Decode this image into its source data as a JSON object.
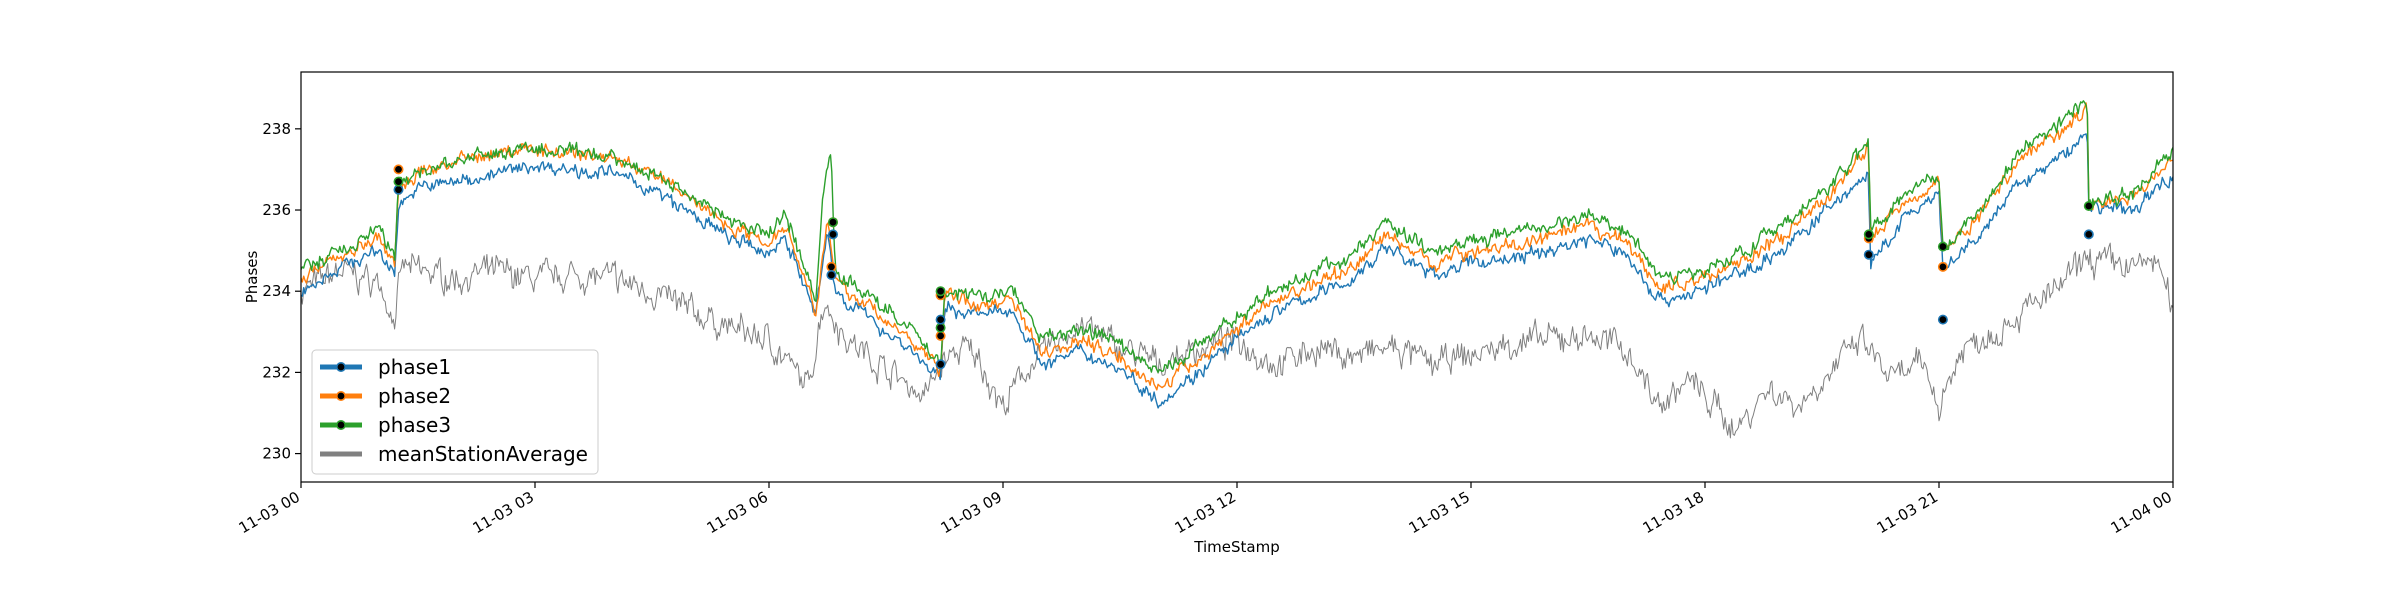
{
  "chart_data": {
    "type": "line",
    "xlabel": "TimeStamp",
    "ylabel": "Phases",
    "x_ticks": [
      "11-03 00",
      "11-03 03",
      "11-03 06",
      "11-03 09",
      "11-03 12",
      "11-03 15",
      "11-03 18",
      "11-03 21",
      "11-04 00"
    ],
    "y_ticks": [
      "230",
      "232",
      "234",
      "236",
      "238"
    ],
    "xlim_hours": [
      0,
      24
    ],
    "ylim": [
      229.3,
      239.4
    ],
    "grid": false,
    "legend_position": "lower-left",
    "series": [
      {
        "name": "phase1",
        "color": "#1f77b4",
        "noise": 0.22,
        "points": [
          [
            0,
            234.0
          ],
          [
            0.5,
            234.6
          ],
          [
            1.0,
            235.0
          ],
          [
            1.2,
            234.4
          ],
          [
            1.25,
            236.2
          ],
          [
            1.6,
            236.6
          ],
          [
            2.0,
            236.7
          ],
          [
            2.5,
            236.9
          ],
          [
            3.0,
            237.1
          ],
          [
            3.5,
            237.0
          ],
          [
            4.0,
            236.9
          ],
          [
            4.5,
            236.5
          ],
          [
            5.0,
            235.9
          ],
          [
            5.5,
            235.3
          ],
          [
            6.0,
            234.9
          ],
          [
            6.2,
            235.4
          ],
          [
            6.6,
            233.4
          ],
          [
            6.75,
            235.5
          ],
          [
            6.85,
            234.0
          ],
          [
            7.3,
            233.3
          ],
          [
            7.8,
            232.6
          ],
          [
            8.2,
            231.8
          ],
          [
            8.25,
            233.6
          ],
          [
            8.5,
            233.5
          ],
          [
            8.8,
            233.4
          ],
          [
            9.1,
            233.6
          ],
          [
            9.5,
            232.2
          ],
          [
            10.0,
            232.5
          ],
          [
            10.5,
            232.1
          ],
          [
            11.0,
            231.3
          ],
          [
            11.5,
            232.0
          ],
          [
            12.0,
            232.8
          ],
          [
            12.5,
            233.5
          ],
          [
            13.0,
            233.9
          ],
          [
            13.5,
            234.3
          ],
          [
            13.9,
            235.1
          ],
          [
            14.5,
            234.4
          ],
          [
            15.0,
            234.7
          ],
          [
            15.5,
            234.8
          ],
          [
            16.0,
            235.0
          ],
          [
            16.5,
            235.3
          ],
          [
            17.0,
            234.9
          ],
          [
            17.4,
            233.8
          ],
          [
            17.8,
            233.9
          ],
          [
            18.5,
            234.5
          ],
          [
            19.0,
            235.0
          ],
          [
            19.5,
            235.9
          ],
          [
            20.1,
            236.9
          ],
          [
            20.12,
            234.6
          ],
          [
            20.6,
            235.9
          ],
          [
            21.0,
            236.3
          ],
          [
            21.05,
            234.5
          ],
          [
            21.5,
            235.3
          ],
          [
            22.0,
            236.6
          ],
          [
            22.5,
            237.2
          ],
          [
            22.9,
            237.9
          ],
          [
            22.92,
            236.1
          ],
          [
            23.5,
            236.0
          ],
          [
            24.0,
            236.9
          ]
        ]
      },
      {
        "name": "phase2",
        "color": "#ff7f0e",
        "noise": 0.22,
        "points": [
          [
            0,
            234.3
          ],
          [
            0.5,
            234.9
          ],
          [
            1.0,
            235.3
          ],
          [
            1.2,
            234.6
          ],
          [
            1.25,
            236.5
          ],
          [
            1.6,
            237.0
          ],
          [
            2.0,
            237.2
          ],
          [
            2.5,
            237.4
          ],
          [
            3.0,
            237.5
          ],
          [
            3.5,
            237.4
          ],
          [
            4.0,
            237.3
          ],
          [
            4.5,
            236.9
          ],
          [
            5.0,
            236.3
          ],
          [
            5.5,
            235.6
          ],
          [
            6.0,
            235.2
          ],
          [
            6.2,
            235.7
          ],
          [
            6.6,
            233.6
          ],
          [
            6.75,
            235.7
          ],
          [
            6.85,
            234.2
          ],
          [
            7.3,
            233.6
          ],
          [
            7.8,
            232.8
          ],
          [
            8.2,
            232.1
          ],
          [
            8.25,
            233.9
          ],
          [
            8.5,
            233.8
          ],
          [
            8.8,
            233.6
          ],
          [
            9.1,
            233.9
          ],
          [
            9.5,
            232.5
          ],
          [
            10.0,
            232.8
          ],
          [
            10.5,
            232.4
          ],
          [
            11.0,
            231.6
          ],
          [
            11.5,
            232.3
          ],
          [
            12.0,
            233.1
          ],
          [
            12.5,
            233.8
          ],
          [
            13.0,
            234.2
          ],
          [
            13.5,
            234.6
          ],
          [
            13.9,
            235.4
          ],
          [
            14.5,
            234.7
          ],
          [
            15.0,
            235.0
          ],
          [
            15.5,
            235.1
          ],
          [
            16.0,
            235.3
          ],
          [
            16.5,
            235.6
          ],
          [
            17.0,
            235.2
          ],
          [
            17.4,
            234.1
          ],
          [
            17.8,
            234.2
          ],
          [
            18.5,
            234.8
          ],
          [
            19.0,
            235.3
          ],
          [
            19.5,
            236.2
          ],
          [
            20.1,
            237.5
          ],
          [
            20.12,
            235.3
          ],
          [
            20.6,
            236.3
          ],
          [
            21.0,
            236.7
          ],
          [
            21.05,
            235.0
          ],
          [
            21.5,
            235.8
          ],
          [
            22.0,
            237.2
          ],
          [
            22.5,
            237.9
          ],
          [
            22.9,
            238.5
          ],
          [
            22.92,
            236.2
          ],
          [
            23.5,
            236.3
          ],
          [
            24.0,
            237.3
          ]
        ]
      },
      {
        "name": "phase3",
        "color": "#2ca02c",
        "noise": 0.22,
        "points": [
          [
            0,
            234.5
          ],
          [
            0.5,
            235.0
          ],
          [
            1.0,
            235.5
          ],
          [
            1.2,
            234.8
          ],
          [
            1.25,
            236.7
          ],
          [
            1.6,
            237.0
          ],
          [
            2.0,
            237.2
          ],
          [
            2.5,
            237.4
          ],
          [
            3.0,
            237.5
          ],
          [
            3.5,
            237.4
          ],
          [
            4.0,
            237.3
          ],
          [
            4.5,
            236.9
          ],
          [
            5.0,
            236.4
          ],
          [
            5.5,
            235.7
          ],
          [
            6.0,
            235.4
          ],
          [
            6.2,
            236.0
          ],
          [
            6.6,
            233.8
          ],
          [
            6.7,
            236.6
          ],
          [
            6.8,
            237.3
          ],
          [
            6.85,
            234.4
          ],
          [
            7.3,
            233.9
          ],
          [
            7.8,
            233.1
          ],
          [
            8.2,
            232.2
          ],
          [
            8.25,
            234.0
          ],
          [
            8.5,
            234.0
          ],
          [
            8.8,
            233.8
          ],
          [
            9.1,
            234.1
          ],
          [
            9.5,
            232.8
          ],
          [
            10.0,
            233.1
          ],
          [
            10.5,
            232.7
          ],
          [
            11.0,
            232.0
          ],
          [
            11.5,
            232.6
          ],
          [
            12.0,
            233.4
          ],
          [
            12.5,
            234.0
          ],
          [
            13.0,
            234.5
          ],
          [
            13.5,
            234.9
          ],
          [
            13.9,
            235.7
          ],
          [
            14.5,
            235.0
          ],
          [
            15.0,
            235.3
          ],
          [
            15.5,
            235.4
          ],
          [
            16.0,
            235.6
          ],
          [
            16.5,
            235.9
          ],
          [
            17.0,
            235.5
          ],
          [
            17.4,
            234.4
          ],
          [
            17.8,
            234.4
          ],
          [
            18.5,
            235.0
          ],
          [
            19.0,
            235.6
          ],
          [
            19.5,
            236.4
          ],
          [
            20.1,
            237.7
          ],
          [
            20.12,
            235.5
          ],
          [
            20.6,
            236.5
          ],
          [
            21.0,
            236.9
          ],
          [
            21.05,
            235.1
          ],
          [
            21.5,
            235.9
          ],
          [
            22.0,
            237.4
          ],
          [
            22.5,
            238.1
          ],
          [
            22.9,
            238.7
          ],
          [
            22.92,
            236.2
          ],
          [
            23.5,
            236.4
          ],
          [
            24.0,
            237.5
          ]
        ]
      },
      {
        "name": "meanStationAverage",
        "color": "#808080",
        "noise": 0.45,
        "points": [
          [
            0,
            234.0
          ],
          [
            0.5,
            234.5
          ],
          [
            1.0,
            234.2
          ],
          [
            1.2,
            233.3
          ],
          [
            1.3,
            234.6
          ],
          [
            2.0,
            234.3
          ],
          [
            2.5,
            234.5
          ],
          [
            3.0,
            234.3
          ],
          [
            3.5,
            234.4
          ],
          [
            4.0,
            234.3
          ],
          [
            4.5,
            234.0
          ],
          [
            5.0,
            233.5
          ],
          [
            5.5,
            233.1
          ],
          [
            6.0,
            232.8
          ],
          [
            6.5,
            231.6
          ],
          [
            6.7,
            233.8
          ],
          [
            7.0,
            232.8
          ],
          [
            7.5,
            232.1
          ],
          [
            8.0,
            231.4
          ],
          [
            8.2,
            232.2
          ],
          [
            8.5,
            232.6
          ],
          [
            8.7,
            232.3
          ],
          [
            9.0,
            231.1
          ],
          [
            9.3,
            232.1
          ],
          [
            9.6,
            232.6
          ],
          [
            10.0,
            233.2
          ],
          [
            10.5,
            232.6
          ],
          [
            11.0,
            232.2
          ],
          [
            11.5,
            232.6
          ],
          [
            12.0,
            232.8
          ],
          [
            12.5,
            232.2
          ],
          [
            13.0,
            232.6
          ],
          [
            13.5,
            232.4
          ],
          [
            14.0,
            232.6
          ],
          [
            14.5,
            232.2
          ],
          [
            15.0,
            232.4
          ],
          [
            15.5,
            232.7
          ],
          [
            16.0,
            232.8
          ],
          [
            16.5,
            232.9
          ],
          [
            17.0,
            232.6
          ],
          [
            17.4,
            231.2
          ],
          [
            17.8,
            231.8
          ],
          [
            18.0,
            231.4
          ],
          [
            18.4,
            230.6
          ],
          [
            18.8,
            231.6
          ],
          [
            19.2,
            231.2
          ],
          [
            19.6,
            232.0
          ],
          [
            20.0,
            232.8
          ],
          [
            20.4,
            231.8
          ],
          [
            20.8,
            232.2
          ],
          [
            21.0,
            231.2
          ],
          [
            21.3,
            232.6
          ],
          [
            21.7,
            233.0
          ],
          [
            22.0,
            233.4
          ],
          [
            22.5,
            234.0
          ],
          [
            22.9,
            234.8
          ],
          [
            23.5,
            234.6
          ],
          [
            23.8,
            234.8
          ],
          [
            24.0,
            233.4
          ]
        ]
      }
    ],
    "markers": [
      {
        "x": 1.25,
        "y": 236.5,
        "series": "phase1"
      },
      {
        "x": 1.25,
        "y": 237.0,
        "series": "phase2"
      },
      {
        "x": 1.25,
        "y": 236.7,
        "series": "phase3"
      },
      {
        "x": 6.82,
        "y": 235.4,
        "series": "phase1"
      },
      {
        "x": 6.82,
        "y": 235.7,
        "series": "phase2"
      },
      {
        "x": 6.82,
        "y": 235.7,
        "series": "phase3"
      },
      {
        "x": 6.8,
        "y": 234.6,
        "series": "phase2"
      },
      {
        "x": 6.8,
        "y": 234.4,
        "series": "phase1"
      },
      {
        "x": 8.2,
        "y": 232.2,
        "series": "phase1"
      },
      {
        "x": 8.2,
        "y": 232.9,
        "series": "phase2"
      },
      {
        "x": 8.2,
        "y": 233.1,
        "series": "phase3"
      },
      {
        "x": 8.2,
        "y": 233.3,
        "series": "phase1"
      },
      {
        "x": 8.2,
        "y": 233.9,
        "series": "phase2"
      },
      {
        "x": 8.2,
        "y": 234.0,
        "series": "phase3"
      },
      {
        "x": 20.1,
        "y": 234.9,
        "series": "phase1"
      },
      {
        "x": 20.1,
        "y": 235.3,
        "series": "phase2"
      },
      {
        "x": 20.1,
        "y": 235.4,
        "series": "phase3"
      },
      {
        "x": 21.05,
        "y": 233.3,
        "series": "phase1"
      },
      {
        "x": 21.05,
        "y": 234.6,
        "series": "phase2"
      },
      {
        "x": 21.05,
        "y": 235.1,
        "series": "phase3"
      },
      {
        "x": 22.92,
        "y": 235.4,
        "series": "phase1"
      },
      {
        "x": 22.92,
        "y": 236.1,
        "series": "phase3"
      }
    ]
  }
}
